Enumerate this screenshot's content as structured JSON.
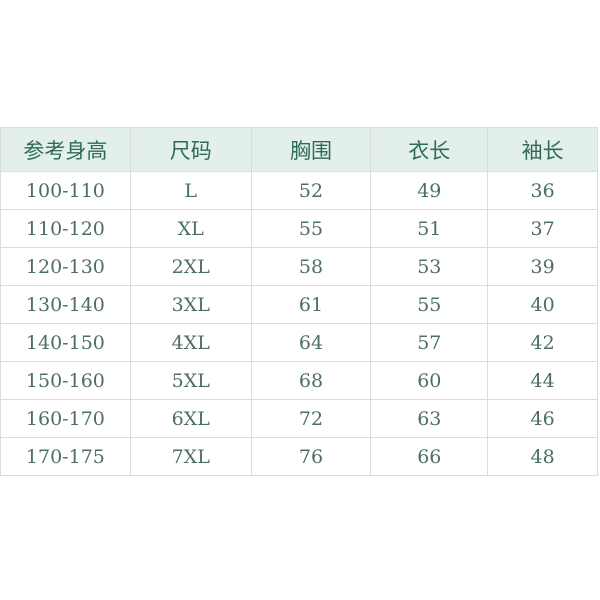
{
  "table": {
    "headers": [
      "参考身高",
      "尺码",
      "胸围",
      "衣长",
      "袖长"
    ],
    "rows": [
      [
        "100-110",
        "L",
        "52",
        "49",
        "36"
      ],
      [
        "110-120",
        "XL",
        "55",
        "51",
        "37"
      ],
      [
        "120-130",
        "2XL",
        "58",
        "53",
        "39"
      ],
      [
        "130-140",
        "3XL",
        "61",
        "55",
        "40"
      ],
      [
        "140-150",
        "4XL",
        "64",
        "57",
        "42"
      ],
      [
        "150-160",
        "5XL",
        "68",
        "60",
        "44"
      ],
      [
        "160-170",
        "6XL",
        "72",
        "63",
        "46"
      ],
      [
        "170-175",
        "7XL",
        "76",
        "66",
        "48"
      ]
    ]
  },
  "colors": {
    "header_bg": "#e2efed",
    "header_text": "#2f6b57",
    "body_text": "#4d6e66",
    "border": "#dcdcdc"
  }
}
